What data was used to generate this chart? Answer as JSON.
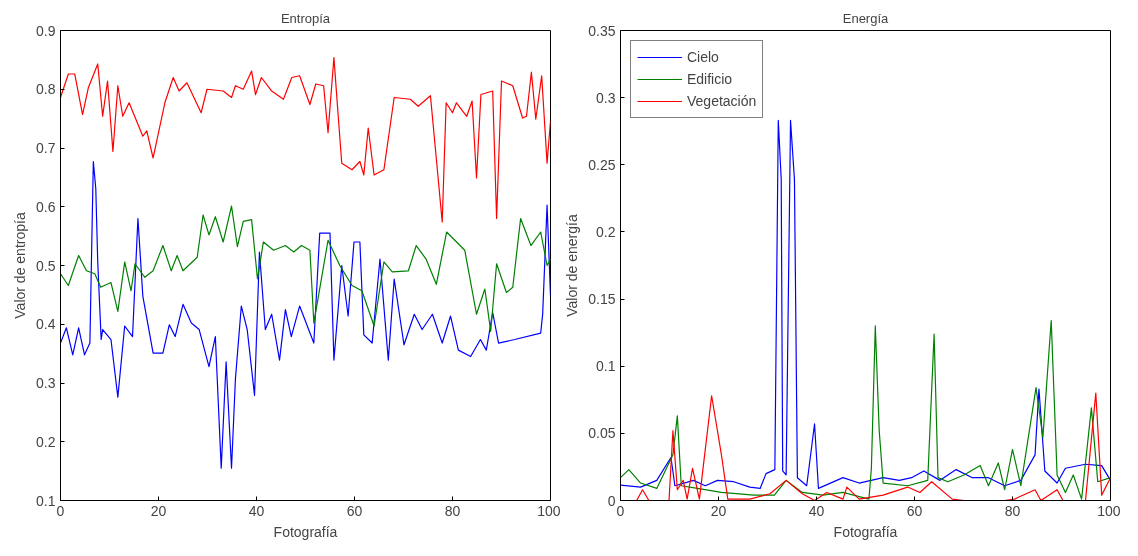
{
  "chart_data": [
    {
      "type": "line",
      "title": "Entropía",
      "xlabel": "Fotografía",
      "ylabel": "Valor de entropía",
      "xlim": [
        0,
        100
      ],
      "xticks": [
        0,
        20,
        40,
        60,
        80,
        100
      ],
      "ylim": [
        0.1,
        0.9
      ],
      "yticks": [
        0.1,
        0.2,
        0.3,
        0.4,
        0.5,
        0.6,
        0.7,
        0.8,
        0.9
      ],
      "grid": false,
      "series": [
        {
          "color": "#0000ff",
          "x": [
            0,
            1.2,
            2.5,
            3.7,
            4.9,
            6,
            6.7,
            7.2,
            7.6,
            8.3,
            8.6,
            10.3,
            11.7,
            13.1,
            14.7,
            15.8,
            16.8,
            18.9,
            20.9,
            22.2,
            23.4,
            25,
            26.7,
            28.3,
            30.3,
            31.6,
            32.8,
            33.8,
            34.9,
            35.7,
            36.9,
            38.1,
            39.6,
            40.6,
            41.8,
            43.1,
            44.7,
            45.9,
            47.1,
            48.8,
            51.7,
            52.9,
            55,
            55.8,
            57.4,
            58.7,
            59.9,
            61.1,
            61.9,
            63.6,
            65.2,
            66.9,
            68.1,
            70.1,
            72.2,
            73.8,
            75.9,
            77.9,
            79.6,
            81.2,
            83.7,
            85.7,
            86.9,
            88.2,
            89.4,
            92.7,
            98,
            98.4,
            99.3,
            100
          ],
          "values": [
            0.368,
            0.394,
            0.348,
            0.394,
            0.348,
            0.368,
            0.677,
            0.631,
            0.506,
            0.374,
            0.391,
            0.374,
            0.276,
            0.397,
            0.379,
            0.58,
            0.448,
            0.351,
            0.351,
            0.399,
            0.379,
            0.434,
            0.402,
            0.391,
            0.328,
            0.379,
            0.155,
            0.336,
            0.155,
            0.307,
            0.431,
            0.391,
            0.279,
            0.523,
            0.391,
            0.417,
            0.339,
            0.425,
            0.379,
            0.431,
            0.368,
            0.555,
            0.555,
            0.339,
            0.5,
            0.414,
            0.54,
            0.54,
            0.382,
            0.368,
            0.511,
            0.339,
            0.477,
            0.365,
            0.417,
            0.391,
            0.417,
            0.368,
            0.414,
            0.356,
            0.345,
            0.374,
            0.356,
            0.42,
            0.368,
            0.374,
            0.385,
            0.417,
            0.603,
            0.448
          ]
        },
        {
          "color": "#008000",
          "x": [
            0,
            1.6,
            3.7,
            5.3,
            7,
            8.2,
            10.3,
            11.7,
            13.1,
            14.4,
            15.2,
            17.2,
            18.9,
            20.9,
            22.6,
            23.8,
            25,
            27.9,
            29.1,
            30.3,
            31.6,
            33.2,
            34.9,
            36.1,
            37.3,
            39,
            40.2,
            41.4,
            43.5,
            45.9,
            47.6,
            49.2,
            50.9,
            51.7,
            54.6,
            57,
            59.5,
            61.5,
            64,
            66,
            67.7,
            71,
            72.6,
            74.6,
            76.7,
            78.8,
            82.5,
            84.9,
            86.6,
            87.8,
            89,
            91,
            92.3,
            93.9,
            96,
            98,
            99.3,
            100
          ],
          "values": [
            0.486,
            0.466,
            0.517,
            0.491,
            0.486,
            0.463,
            0.471,
            0.422,
            0.506,
            0.457,
            0.503,
            0.48,
            0.491,
            0.534,
            0.491,
            0.517,
            0.491,
            0.514,
            0.586,
            0.552,
            0.583,
            0.54,
            0.601,
            0.532,
            0.575,
            0.578,
            0.477,
            0.54,
            0.526,
            0.534,
            0.523,
            0.534,
            0.526,
            0.402,
            0.543,
            0.5,
            0.466,
            0.457,
            0.397,
            0.506,
            0.489,
            0.491,
            0.534,
            0.511,
            0.468,
            0.557,
            0.526,
            0.417,
            0.46,
            0.388,
            0.503,
            0.454,
            0.463,
            0.58,
            0.534,
            0.557,
            0.5,
            0.511
          ]
        },
        {
          "color": "#ff0000",
          "x": [
            0,
            1.6,
            2.9,
            4.5,
            5.7,
            7.6,
            8.6,
            9.6,
            10.7,
            11.7,
            12.7,
            14,
            16.8,
            17.6,
            18.9,
            21.3,
            23,
            24.2,
            25.8,
            28.7,
            29.9,
            33.2,
            34.9,
            35.7,
            37.3,
            39,
            39.8,
            41,
            43.1,
            45.5,
            47.2,
            48.8,
            50.9,
            52.1,
            53.7,
            54.6,
            55.8,
            56.6,
            57.4,
            59.5,
            61.1,
            61.9,
            62.8,
            64,
            66,
            68.1,
            71.4,
            73,
            75.5,
            77.9,
            78.7,
            80,
            80.8,
            82.9,
            84,
            84.9,
            85.8,
            88.2,
            89,
            90,
            92.3,
            94.3,
            95.1,
            96.1,
            97,
            98.2,
            99.3,
            100
          ],
          "values": [
            0.786,
            0.826,
            0.826,
            0.757,
            0.803,
            0.843,
            0.754,
            0.814,
            0.694,
            0.806,
            0.754,
            0.777,
            0.72,
            0.729,
            0.683,
            0.777,
            0.82,
            0.797,
            0.811,
            0.76,
            0.8,
            0.797,
            0.786,
            0.806,
            0.8,
            0.831,
            0.791,
            0.82,
            0.797,
            0.783,
            0.82,
            0.823,
            0.774,
            0.809,
            0.806,
            0.726,
            0.854,
            0.763,
            0.674,
            0.663,
            0.677,
            0.654,
            0.734,
            0.654,
            0.663,
            0.786,
            0.783,
            0.771,
            0.789,
            0.574,
            0.777,
            0.76,
            0.777,
            0.754,
            0.78,
            0.649,
            0.791,
            0.797,
            0.58,
            0.814,
            0.806,
            0.751,
            0.754,
            0.829,
            0.749,
            0.823,
            0.674,
            0.746
          ]
        }
      ]
    },
    {
      "type": "line",
      "title": "Energía",
      "xlabel": "Fotografía",
      "ylabel": "Valor de energía",
      "xlim": [
        0,
        100
      ],
      "xticks": [
        0,
        20,
        40,
        60,
        80,
        100
      ],
      "ylim": [
        0,
        0.35
      ],
      "yticks": [
        0,
        0.05,
        0.1,
        0.15,
        0.2,
        0.25,
        0.3,
        0.35
      ],
      "grid": false,
      "legend": "top left",
      "series": [
        {
          "name": "Cielo",
          "color": "#0000ff",
          "x": [
            0,
            4.1,
            7.4,
            10.3,
            11.1,
            14.9,
            17.3,
            19.8,
            23.1,
            26.4,
            28.5,
            29.7,
            31.5,
            32.2,
            32.8,
            33.1,
            33.8,
            34.7,
            35.5,
            36.1,
            38,
            39.6,
            40.4,
            45.4,
            48.7,
            53.6,
            56.9,
            59.4,
            61.9,
            65.2,
            68.5,
            71.8,
            75.1,
            78.4,
            81.7,
            84.6,
            85.4,
            86.6,
            89.1,
            90.8,
            94.9,
            98.2,
            100
          ],
          "values": [
            0.0115,
            0.01,
            0.015,
            0.032,
            0.011,
            0.015,
            0.011,
            0.015,
            0.014,
            0.01,
            0.009,
            0.02,
            0.023,
            0.283,
            0.239,
            0.022,
            0.019,
            0.283,
            0.239,
            0.017,
            0.011,
            0.057,
            0.009,
            0.017,
            0.013,
            0.017,
            0.015,
            0.017,
            0.022,
            0.015,
            0.023,
            0.017,
            0.017,
            0.011,
            0.015,
            0.034,
            0.083,
            0.022,
            0.013,
            0.024,
            0.027,
            0.026,
            0.015
          ]
        },
        {
          "name": "Edificio",
          "color": "#008000",
          "x": [
            0,
            1.7,
            4.1,
            7.4,
            10.7,
            11.6,
            12.4,
            15.7,
            20.6,
            27.2,
            31.4,
            33.8,
            37.1,
            41.3,
            45.4,
            50.7,
            51.2,
            52,
            52.8,
            53.6,
            58.6,
            62.7,
            64,
            64.8,
            66.8,
            70.1,
            73.4,
            75.1,
            77.1,
            78.4,
            80,
            81.7,
            84.8,
            86.2,
            87.9,
            89.1,
            90.8,
            92.4,
            94.1,
            96.1,
            97.4,
            100
          ],
          "values": [
            0.017,
            0.023,
            0.013,
            0.009,
            0.034,
            0.063,
            0.011,
            0.009,
            0.006,
            0.004,
            0.004,
            0.015,
            0.006,
            0.004,
            0.006,
            0.001,
            0.024,
            0.13,
            0.052,
            0.013,
            0.011,
            0.015,
            0.124,
            0.017,
            0.014,
            0.019,
            0.026,
            0.011,
            0.028,
            0.008,
            0.038,
            0.011,
            0.084,
            0.047,
            0.134,
            0.019,
            0.006,
            0.019,
            0.001,
            0.069,
            0.014,
            0.017
          ]
        },
        {
          "name": "Vegetación",
          "color": "#ff0000",
          "x": [
            0,
            3.3,
            4.5,
            5.8,
            9.9,
            10.7,
            11.6,
            12.8,
            13.6,
            14.7,
            16.1,
            18.6,
            20.6,
            21.9,
            26.4,
            30.5,
            33.8,
            37.1,
            39.6,
            42.1,
            45.4,
            46.2,
            48.7,
            53.6,
            55.3,
            58.6,
            61.1,
            63.5,
            67.7,
            70.1,
            78.4,
            80.4,
            84.6,
            85.8,
            89.1,
            90.3,
            94.9,
            97,
            98.2,
            100
          ],
          "values": [
            0,
            0,
            0.008,
            0,
            0,
            0.052,
            0.008,
            0.015,
            0.001,
            0.024,
            0.001,
            0.078,
            0.034,
            0.001,
            0.001,
            0.005,
            0.015,
            0.005,
            0,
            0.006,
            0.001,
            0.01,
            0.001,
            0.004,
            0.006,
            0.01,
            0.006,
            0.014,
            0.001,
            0,
            0,
            0.001,
            0.008,
            0,
            0.008,
            0,
            0,
            0.08,
            0.004,
            0.017
          ]
        }
      ]
    }
  ]
}
